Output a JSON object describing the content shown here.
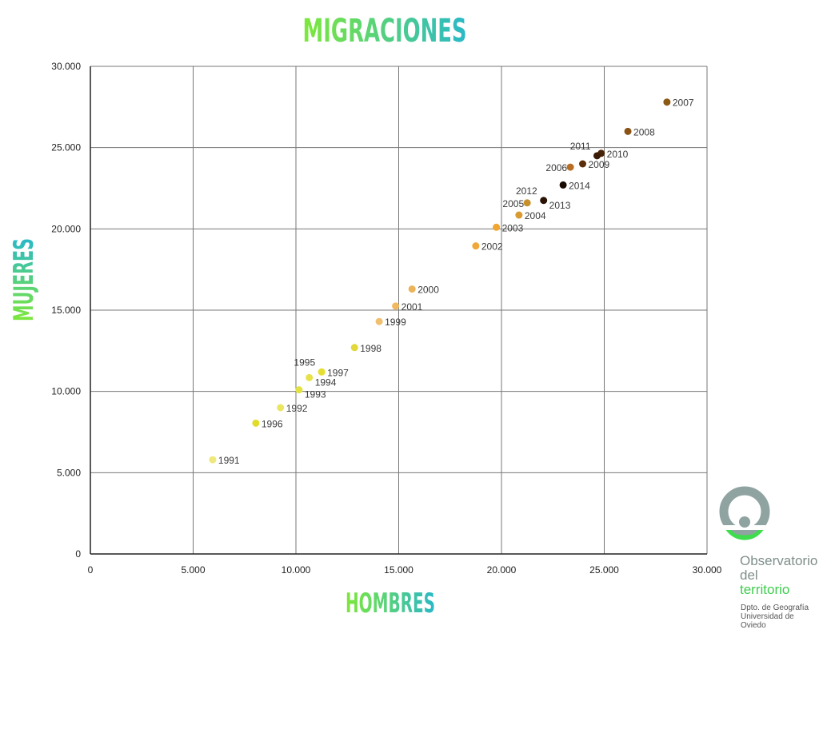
{
  "chart_data": {
    "type": "scatter",
    "title": "MIGRACIONES",
    "xlabel": "HOMBRES",
    "ylabel": "MUJERES",
    "xlim": [
      0,
      30000
    ],
    "ylim": [
      0,
      30000
    ],
    "x_ticks": [
      {
        "value": 0,
        "label": "0"
      },
      {
        "value": 5000,
        "label": "5.000"
      },
      {
        "value": 10000,
        "label": "10.000"
      },
      {
        "value": 15000,
        "label": "15.000"
      },
      {
        "value": 20000,
        "label": "20.000"
      },
      {
        "value": 25000,
        "label": "25.000"
      },
      {
        "value": 30000,
        "label": "30.000"
      }
    ],
    "y_ticks": [
      {
        "value": 0,
        "label": "0"
      },
      {
        "value": 5000,
        "label": "5.000"
      },
      {
        "value": 10000,
        "label": "10.000"
      },
      {
        "value": 15000,
        "label": "15.000"
      },
      {
        "value": 20000,
        "label": "20.000"
      },
      {
        "value": 25000,
        "label": "25.000"
      },
      {
        "value": 30000,
        "label": "30.000"
      }
    ],
    "grid": true,
    "points": [
      {
        "label": "1991",
        "x": 5950,
        "y": 5800,
        "color": "#efe87a",
        "label_pos": "right"
      },
      {
        "label": "1992",
        "x": 9250,
        "y": 9000,
        "color": "#eae660",
        "label_pos": "right"
      },
      {
        "label": "1993",
        "x": 10150,
        "y": 10100,
        "color": "#e4e240",
        "label_pos": "right-below"
      },
      {
        "label": "1994",
        "x": 10650,
        "y": 10850,
        "color": "#e8e24a",
        "label_pos": "right-below"
      },
      {
        "label": "1995",
        "x": 11250,
        "y": 11200,
        "color": "#e6de33",
        "label_pos": "above-left"
      },
      {
        "label": "1996",
        "x": 8050,
        "y": 8050,
        "color": "#e0dc2c",
        "label_pos": "right"
      },
      {
        "label": "1997",
        "x": 11250,
        "y": 11200,
        "color": "#e6de33",
        "label_pos": "right"
      },
      {
        "label": "1998",
        "x": 12850,
        "y": 12700,
        "color": "#e2d83a",
        "label_pos": "right"
      },
      {
        "label": "1999",
        "x": 14050,
        "y": 14300,
        "color": "#f0c070",
        "label_pos": "right"
      },
      {
        "label": "2000",
        "x": 15650,
        "y": 16300,
        "color": "#ecb45a",
        "label_pos": "right"
      },
      {
        "label": "2001",
        "x": 14850,
        "y": 15250,
        "color": "#f0b860",
        "label_pos": "right"
      },
      {
        "label": "2002",
        "x": 18750,
        "y": 18950,
        "color": "#f0a83a",
        "label_pos": "right"
      },
      {
        "label": "2003",
        "x": 19750,
        "y": 20100,
        "color": "#f0a630",
        "label_pos": "right"
      },
      {
        "label": "2004",
        "x": 20850,
        "y": 20850,
        "color": "#d99a30",
        "label_pos": "right"
      },
      {
        "label": "2005",
        "x": 21250,
        "y": 21600,
        "color": "#c8902c",
        "label_pos": "left"
      },
      {
        "label": "2006",
        "x": 23350,
        "y": 23800,
        "color": "#b86e22",
        "label_pos": "left"
      },
      {
        "label": "2007",
        "x": 28050,
        "y": 27800,
        "color": "#8c5a14",
        "label_pos": "right"
      },
      {
        "label": "2008",
        "x": 26150,
        "y": 26000,
        "color": "#8a5214",
        "label_pos": "right"
      },
      {
        "label": "2009",
        "x": 23950,
        "y": 24000,
        "color": "#5a2e08",
        "label_pos": "right"
      },
      {
        "label": "2010",
        "x": 24850,
        "y": 24650,
        "color": "#4a2206",
        "label_pos": "right"
      },
      {
        "label": "2011",
        "x": 24650,
        "y": 24500,
        "color": "#3a1a04",
        "label_pos": "above-left"
      },
      {
        "label": "2012",
        "x": 22050,
        "y": 21750,
        "color": "#2a1204",
        "label_pos": "above-left"
      },
      {
        "label": "2013",
        "x": 22050,
        "y": 21750,
        "color": "#2a1204",
        "label_pos": "right-below"
      },
      {
        "label": "2014",
        "x": 23000,
        "y": 22700,
        "color": "#1a0a02",
        "label_pos": "right"
      }
    ]
  },
  "logo": {
    "line1": "Observatorio",
    "line2": "del",
    "line3": "territorio",
    "sub1": "Dpto. de Geografía",
    "sub2": "Universidad de",
    "sub3": "Oviedo",
    "ring_color": "#8fa3a0",
    "accent_color": "#3fdc4e"
  },
  "colors": {
    "title_gradient_start": "#7ee83a",
    "title_gradient_end": "#2ab8c8",
    "grid": "#777777",
    "axis": "#222222"
  }
}
